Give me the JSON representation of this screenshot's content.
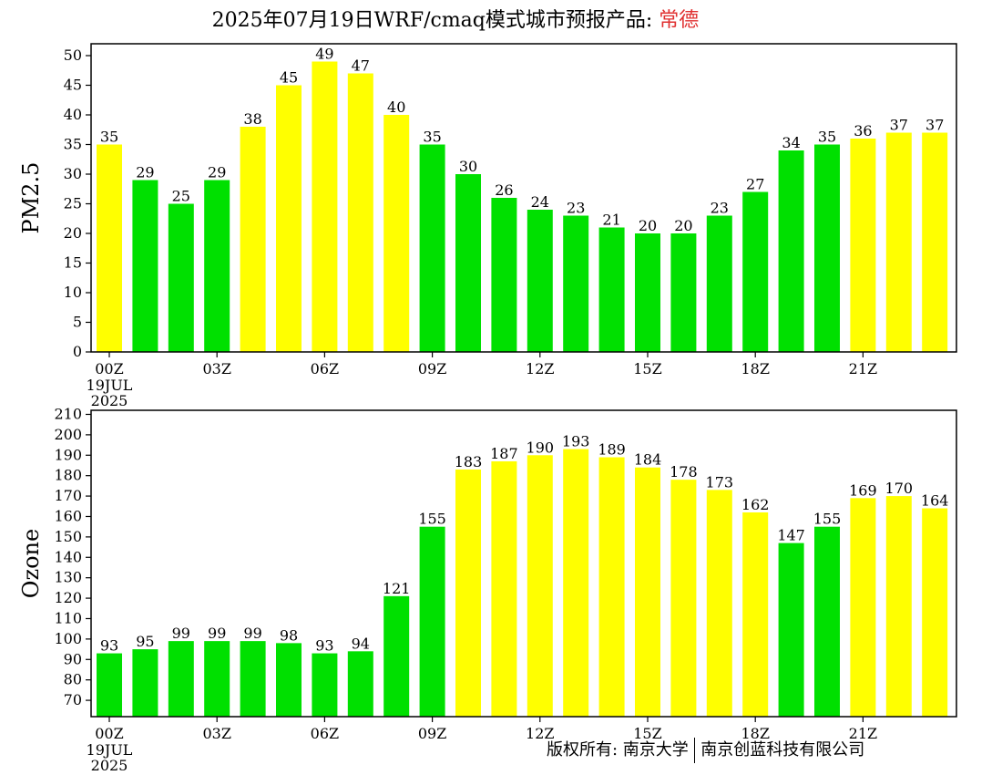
{
  "title": {
    "prefix": "2025年07月19日WRF/cmaq模式城市预报产品: ",
    "city": "常德",
    "city_color": "#e03030"
  },
  "footer": {
    "copyright": "版权所有: 南京大学",
    "company": "南京创蓝科技有限公司"
  },
  "colors": {
    "green": "#00e000",
    "yellow": "#ffff00"
  },
  "chart_data": [
    {
      "type": "bar",
      "ylabel": "PM2.5",
      "ylim": [
        0,
        52
      ],
      "yticks": [
        0,
        5,
        10,
        15,
        20,
        25,
        30,
        35,
        40,
        45,
        50
      ],
      "xticks": [
        "00Z",
        "03Z",
        "06Z",
        "09Z",
        "12Z",
        "15Z",
        "18Z",
        "21Z"
      ],
      "date_label": [
        "19JUL",
        "2025"
      ],
      "values": [
        35,
        29,
        25,
        29,
        38,
        45,
        49,
        47,
        40,
        35,
        30,
        26,
        24,
        23,
        21,
        20,
        20,
        23,
        27,
        34,
        35,
        36,
        37,
        37
      ],
      "bar_colors": [
        "yellow",
        "green",
        "green",
        "green",
        "yellow",
        "yellow",
        "yellow",
        "yellow",
        "yellow",
        "green",
        "green",
        "green",
        "green",
        "green",
        "green",
        "green",
        "green",
        "green",
        "green",
        "green",
        "green",
        "yellow",
        "yellow",
        "yellow"
      ]
    },
    {
      "type": "bar",
      "ylabel": "Ozone",
      "ylim": [
        62,
        212
      ],
      "yticks": [
        70,
        80,
        90,
        100,
        110,
        120,
        130,
        140,
        150,
        160,
        170,
        180,
        190,
        200,
        210
      ],
      "xticks": [
        "00Z",
        "03Z",
        "06Z",
        "09Z",
        "12Z",
        "15Z",
        "18Z",
        "21Z"
      ],
      "date_label": [
        "19JUL",
        "2025"
      ],
      "values": [
        93,
        95,
        99,
        99,
        99,
        98,
        93,
        94,
        121,
        155,
        183,
        187,
        190,
        193,
        189,
        184,
        178,
        173,
        162,
        147,
        155,
        169,
        170,
        164
      ],
      "bar_colors": [
        "green",
        "green",
        "green",
        "green",
        "green",
        "green",
        "green",
        "green",
        "green",
        "green",
        "yellow",
        "yellow",
        "yellow",
        "yellow",
        "yellow",
        "yellow",
        "yellow",
        "yellow",
        "yellow",
        "green",
        "green",
        "yellow",
        "yellow",
        "yellow"
      ]
    }
  ]
}
